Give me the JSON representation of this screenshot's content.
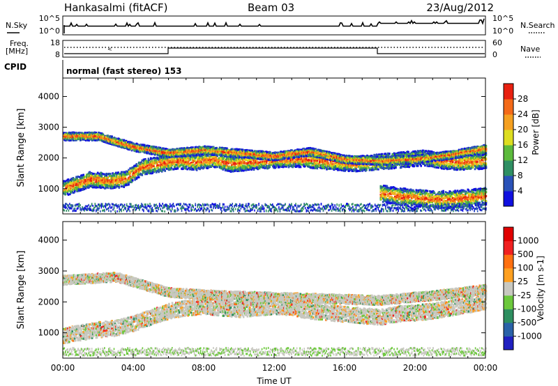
{
  "header": {
    "station": "Hankasalmi (fitACF)",
    "beam": "Beam 03",
    "date": "23/Aug/2012"
  },
  "top_panels": {
    "nsky_label": "N.Sky",
    "nsky_ticks": [
      "10^5",
      "10^0"
    ],
    "nsearch_label": "N.Search",
    "nsearch_ticks": [
      "10^5",
      "10^0"
    ],
    "freq_label": "Freq.",
    "freq_unit": "[MHz]",
    "freq_ticks": [
      "18",
      "8"
    ],
    "nave_label": "Nave",
    "nave_ticks": [
      "60",
      "0"
    ],
    "cpid_label": "CPID",
    "cpid_text": "normal (fast stereo) 153"
  },
  "chart_data": [
    {
      "type": "heatmap",
      "name": "power-panel",
      "ylabel": "Slant Range [km]",
      "xlabel": "",
      "ylim": [
        180,
        4600
      ],
      "yticks": [
        1000,
        2000,
        3000,
        4000
      ],
      "xlim_hours": [
        0,
        24
      ],
      "colorbar": {
        "label": "Power [dB]",
        "ticks": [
          "4",
          "8",
          "12",
          "16",
          "20",
          "24",
          "28"
        ],
        "colors": [
          "#1010e0",
          "#2a52b8",
          "#2f8f63",
          "#5cba3c",
          "#dddd20",
          "#f5a020",
          "#f46a18",
          "#e82010"
        ]
      },
      "bands": [
        {
          "t": [
            0,
            0.8,
            1.5,
            2.5,
            3.5,
            4.5,
            5.5,
            6.5,
            7.5,
            8.5,
            9.5,
            10.5,
            11.5,
            12.5,
            13.5,
            14.5,
            15.5,
            16.5,
            17.5,
            18.5,
            19.5,
            20.5,
            21.5,
            22.5,
            24
          ],
          "r": [
            1000,
            1150,
            1300,
            1250,
            1300,
            1700,
            1800,
            1900,
            1850,
            1950,
            1800,
            1850,
            1900,
            1950,
            1950,
            1900,
            1850,
            1800,
            1850,
            1900,
            1950,
            2000,
            1900,
            1850,
            1900
          ],
          "w": 500
        },
        {
          "t": [
            0,
            2,
            4,
            6,
            8,
            10,
            12,
            14,
            16,
            18,
            20,
            22,
            24
          ],
          "r": [
            2700,
            2700,
            2350,
            2150,
            2250,
            2150,
            2050,
            2200,
            1950,
            1900,
            1950,
            2100,
            2300
          ],
          "w": 260
        },
        {
          "t": [
            18,
            19,
            20,
            21,
            22,
            23,
            24
          ],
          "r": [
            850,
            750,
            700,
            650,
            650,
            700,
            750
          ],
          "w": 550
        }
      ]
    },
    {
      "type": "heatmap",
      "name": "velocity-panel",
      "ylabel": "Slant Range [km]",
      "xlabel": "Time UT",
      "ylim": [
        180,
        4600
      ],
      "yticks": [
        1000,
        2000,
        3000,
        4000
      ],
      "xlim_hours": [
        0,
        24
      ],
      "xticks": [
        "00:00",
        "04:00",
        "08:00",
        "12:00",
        "16:00",
        "20:00",
        "00:00"
      ],
      "colorbar": {
        "label": "Velocity [m s-1]",
        "ticks": [
          "1000",
          "500",
          "100",
          "25",
          "-25",
          "-100",
          "-500",
          "-1000"
        ],
        "colors": [
          "#2020c0",
          "#2a62a8",
          "#2e8f60",
          "#6cc83c",
          "#c8c8c0",
          "#ffa020",
          "#ff7010",
          "#f02020",
          "#e00000"
        ]
      },
      "bands": [
        {
          "t": [
            0,
            1,
            2,
            3,
            4,
            5,
            6,
            7,
            8,
            9,
            10,
            11,
            12,
            13,
            14,
            15,
            16,
            17,
            18,
            19,
            20,
            21,
            22,
            23,
            24
          ],
          "r": [
            900,
            1000,
            1100,
            1150,
            1300,
            1500,
            1700,
            1800,
            1850,
            1800,
            1750,
            1800,
            1850,
            1800,
            1700,
            1650,
            1600,
            1550,
            1500,
            1600,
            1650,
            1700,
            1800,
            1900,
            2000
          ],
          "w": 500
        },
        {
          "t": [
            0,
            3,
            6,
            9,
            12,
            15,
            18,
            21,
            24
          ],
          "r": [
            2700,
            2800,
            2300,
            2200,
            2150,
            2100,
            2050,
            2200,
            2400
          ],
          "w": 300
        }
      ]
    }
  ]
}
